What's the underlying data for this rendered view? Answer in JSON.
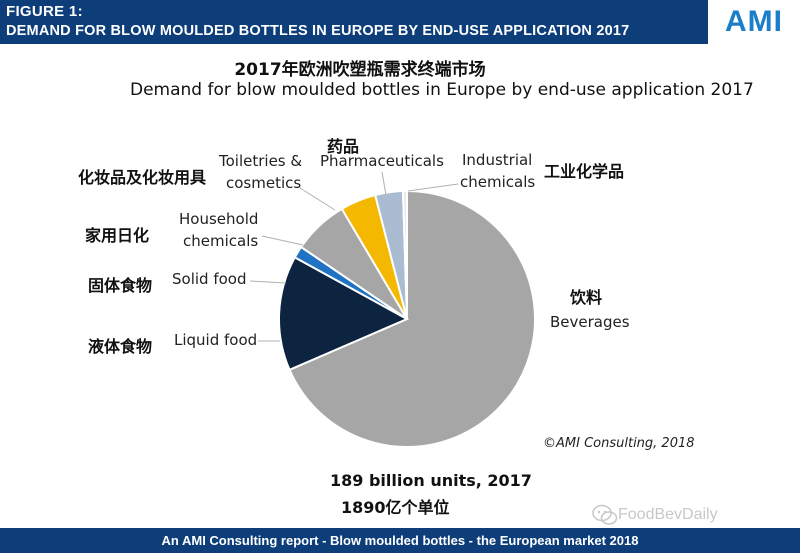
{
  "header": {
    "figure_number": "FIGURE 1:",
    "title": "DEMAND FOR BLOW MOULDED BOTTLES IN EUROPE BY END-USE APPLICATION 2017",
    "logo": "AMI",
    "bg_color": "#0d3e7a",
    "logo_color": "#1a7ec9"
  },
  "chart_data": {
    "type": "pie",
    "title_cn": "2017年欧洲吹塑瓶需求终端市场",
    "title": "Demand for blow moulded bottles in Europe by end-use application 2017",
    "slices": [
      {
        "label": "Beverages",
        "label_cn": "饮料",
        "value": 68.5,
        "color": "#a6a6a6"
      },
      {
        "label": "Liquid food",
        "label_cn": "液体食物",
        "value": 14.5,
        "color": "#0c2440"
      },
      {
        "label": "Solid food",
        "label_cn": "固体食物",
        "value": 1.5,
        "color": "#1f73c2"
      },
      {
        "label": "Household chemicals",
        "label_cn": "家用日化",
        "value": 7.0,
        "color": "#a6a6a6"
      },
      {
        "label": "Toiletries & cosmetics",
        "label_cn": "化妆品及化妆用具",
        "value": 4.5,
        "color": "#f5b800"
      },
      {
        "label": "Pharmaceuticals",
        "label_cn": "药品",
        "value": 3.5,
        "color": "#aabcd2"
      },
      {
        "label": "Industrial chemicals",
        "label_cn": "工业化学品",
        "value": 0.5,
        "color": "#e9e9e9"
      }
    ],
    "labels": {
      "beverages": "Beverages",
      "liquid_food": "Liquid food",
      "solid_food": "Solid food",
      "household_1": "Household",
      "household_2": "chemicals",
      "toiletries_1": "Toiletries &",
      "toiletries_2": "cosmetics",
      "pharmaceuticals": "Pharmaceuticals",
      "industrial_1": "Industrial",
      "industrial_2": "chemicals"
    },
    "labels_cn": {
      "beverages": "饮料",
      "liquid_food": "液体食物",
      "solid_food": "固体食物",
      "household": "家用日化",
      "toiletries": "化妆品及化妆用具",
      "pharmaceuticals": "药品",
      "industrial": "工业化学品"
    },
    "copyright": "©AMI Consulting, 2018",
    "total": "189 billion units, 2017",
    "total_cn": "1890亿个单位"
  },
  "watermark": "FoodBevDaily",
  "footer": "An AMI Consulting report - Blow moulded bottles - the European market  2018"
}
